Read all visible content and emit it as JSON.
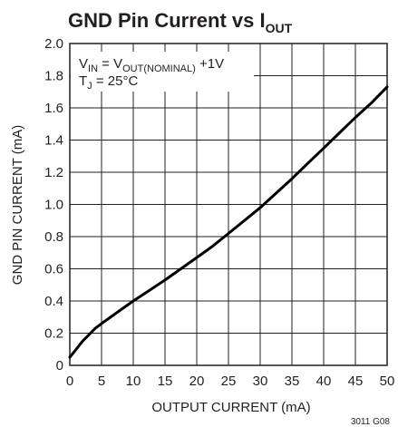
{
  "chart_data": {
    "type": "line",
    "title": {
      "main": "GND Pin Current vs I",
      "sub": "OUT"
    },
    "xlabel": "OUTPUT CURRENT (mA)",
    "ylabel": "GND PIN CURRENT (mA)",
    "xlim": [
      0,
      50
    ],
    "ylim": [
      0,
      2.0
    ],
    "x_ticks": [
      "0",
      "5",
      "10",
      "15",
      "20",
      "25",
      "30",
      "35",
      "40",
      "45",
      "50"
    ],
    "y_ticks": [
      "0",
      "0.2",
      "0.4",
      "0.6",
      "0.8",
      "1.0",
      "1.2",
      "1.4",
      "1.6",
      "1.8",
      "2.0"
    ],
    "grid": true,
    "annotation": {
      "line1": {
        "a": "V",
        "a_sub": "IN",
        "b": " = V",
        "b_sub": "OUT(NOMINAL)",
        "c": " +1V"
      },
      "line2": {
        "a": "T",
        "a_sub": "J",
        "b": " = 25°C"
      }
    },
    "series": [
      {
        "x": [
          0,
          1,
          2,
          3,
          4,
          5,
          7.5,
          10,
          12.5,
          15,
          17.5,
          20,
          22.5,
          25,
          27.5,
          30,
          32.5,
          35,
          37.5,
          40,
          42.5,
          45,
          47.5,
          50
        ],
        "y": [
          0.05,
          0.1,
          0.15,
          0.19,
          0.23,
          0.26,
          0.33,
          0.4,
          0.465,
          0.53,
          0.6,
          0.67,
          0.74,
          0.82,
          0.9,
          0.98,
          1.07,
          1.16,
          1.255,
          1.35,
          1.445,
          1.54,
          1.63,
          1.73
        ]
      }
    ],
    "figure_id": "3011 G08"
  }
}
